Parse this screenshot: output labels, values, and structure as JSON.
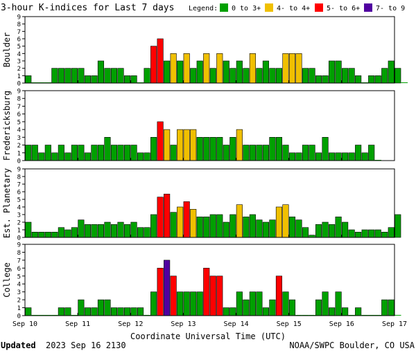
{
  "chart_data": {
    "type": "bar",
    "title": "3-hour K-indices for Last 7 days",
    "legend_label": "Legend:",
    "legend": [
      {
        "label": "0 to 3+",
        "color": "#00a000"
      },
      {
        "label": "4- to 4+",
        "color": "#f0c000"
      },
      {
        "label": "5- to 6+",
        "color": "#ff0000"
      },
      {
        "label": "7- to 9",
        "color": "#5000a0"
      }
    ],
    "xlabel": "Coordinate Universal Time (UTC)",
    "x_ticks": [
      "Sep 10",
      "Sep 11",
      "Sep 12",
      "Sep 13",
      "Sep 14",
      "Sep 15",
      "Sep 16",
      "Sep 17"
    ],
    "ylim": [
      0,
      9
    ],
    "y_ticks": [
      "0",
      "1",
      "2",
      "3",
      "4",
      "5",
      "6",
      "7",
      "8",
      "9"
    ],
    "bins_per_day": 8,
    "series": [
      {
        "name": "Boulder",
        "values": [
          1,
          0,
          0,
          0,
          2,
          2,
          2,
          2,
          2,
          1,
          1,
          3,
          2,
          2,
          2,
          1,
          1,
          0,
          2,
          5,
          6,
          3,
          4,
          3,
          4,
          2,
          3,
          4,
          2,
          4,
          3,
          2,
          3,
          2,
          4,
          2,
          3,
          2,
          2,
          4,
          4,
          4,
          2,
          2,
          1,
          1,
          3,
          3,
          2,
          2,
          1,
          0,
          1,
          1,
          2,
          3,
          2,
          0
        ]
      },
      {
        "name": "Fredericksburg",
        "values": [
          2,
          2,
          1,
          2,
          1,
          2,
          1,
          2,
          2,
          1,
          2,
          2,
          3,
          2,
          2,
          2,
          2,
          1,
          1,
          3,
          5,
          4,
          2,
          4,
          4,
          4,
          3,
          3,
          3,
          3,
          2,
          3,
          4,
          2,
          2,
          2,
          2,
          3,
          3,
          2,
          1,
          1,
          2,
          2,
          1,
          3,
          1,
          1,
          1,
          1,
          2,
          1,
          2,
          0
        ]
      },
      {
        "name": "Est. Planetary",
        "values": [
          2,
          0.7,
          0.7,
          0.7,
          0.7,
          1.3,
          1,
          1.3,
          2.3,
          1.7,
          1.7,
          1.7,
          2,
          1.7,
          2,
          1.7,
          2,
          1.3,
          1.3,
          3,
          5.3,
          5.7,
          3.3,
          4,
          4.7,
          3.7,
          2.7,
          2.7,
          3,
          3,
          2,
          3,
          4.3,
          2.7,
          3,
          2.3,
          2,
          2.3,
          4,
          4.3,
          2.7,
          2.3,
          1.3,
          0.3,
          1.7,
          2,
          1.7,
          2.7,
          2,
          1,
          0.7,
          1,
          1,
          1,
          0.7,
          1.3,
          3
        ]
      },
      {
        "name": "College",
        "values": [
          1,
          0,
          0,
          0,
          0,
          1,
          1,
          0,
          2,
          1,
          1,
          2,
          2,
          1,
          1,
          1,
          1,
          1,
          0,
          3,
          6,
          7,
          5,
          3,
          3,
          3,
          3,
          6,
          5,
          5,
          1,
          1,
          3,
          2,
          3,
          3,
          1,
          2,
          5,
          3,
          2,
          0,
          0,
          0,
          2,
          3,
          1,
          3,
          1,
          0,
          1,
          0,
          0,
          0,
          2,
          2,
          0
        ]
      }
    ]
  },
  "footer": {
    "updated_label": "Updated",
    "updated_value": "2023 Sep 16 2130",
    "source": "NOAA/SWPC Boulder, CO USA"
  }
}
